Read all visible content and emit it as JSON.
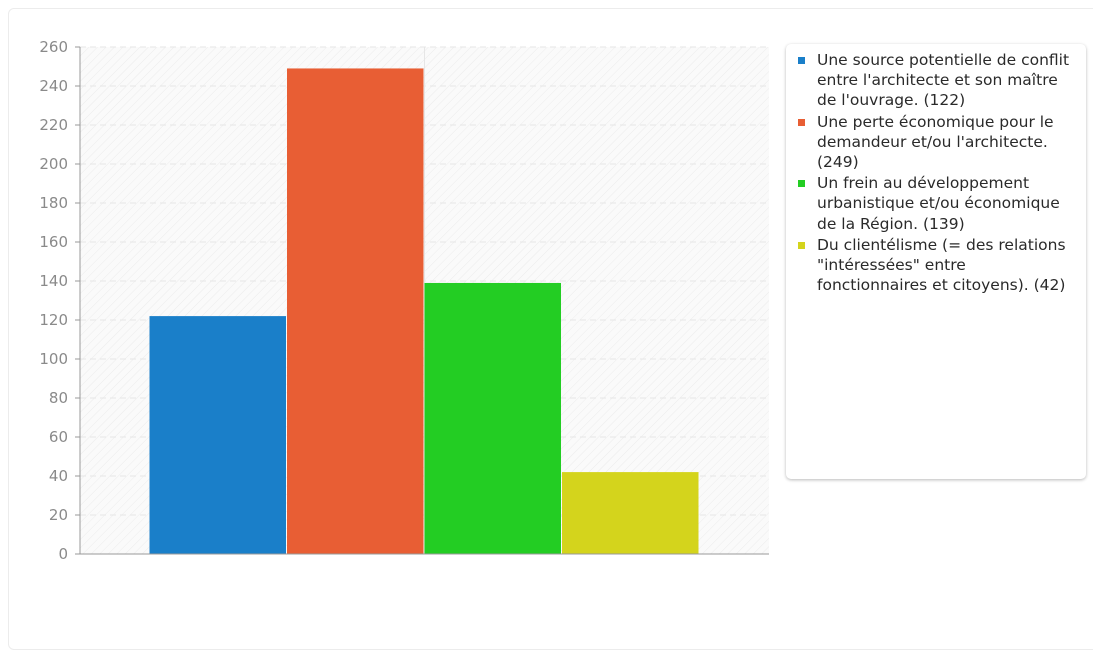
{
  "chart_data": {
    "type": "bar",
    "title": "",
    "xlabel": "",
    "ylabel": "",
    "ylim": [
      0,
      260
    ],
    "yticks": [
      0,
      20,
      40,
      60,
      80,
      100,
      120,
      140,
      160,
      180,
      200,
      220,
      240,
      260
    ],
    "grid": true,
    "legend_position": "right",
    "series": [
      {
        "name": "Une source potentielle de conflit entre l'architecte et son maître de l'ouvrage. (122)",
        "value": 122,
        "color": "#1a7fc9"
      },
      {
        "name": "Une perte économique pour le demandeur et/ou l'architecte. (249)",
        "value": 249,
        "color": "#e85e34"
      },
      {
        "name": "Un frein au développement urbanistique et/ou économique de la Région. (139)",
        "value": 139,
        "color": "#23cd23"
      },
      {
        "name": "Du clientélisme (= des relations \"intéressées\" entre fonctionnaires et citoyens). (42)",
        "value": 42,
        "color": "#d4d41c"
      }
    ]
  }
}
